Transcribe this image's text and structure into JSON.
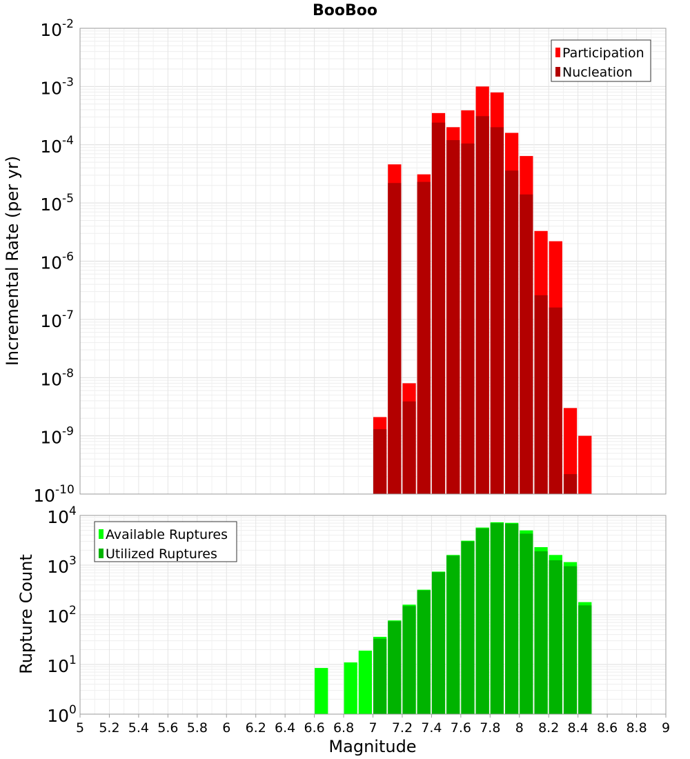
{
  "chart_data": [
    {
      "type": "bar",
      "title": "BooBoo",
      "xlabel": "",
      "ylabel": "Incremental Rate (per yr)",
      "yscale": "log",
      "ylim": [
        1e-10,
        0.01
      ],
      "xlim": [
        5,
        9
      ],
      "bin_width": 0.1,
      "y_tick_base": "10",
      "y_ticks": [
        {
          "exp": -2,
          "label": "-2"
        },
        {
          "exp": -3,
          "label": "-3"
        },
        {
          "exp": -4,
          "label": "-4"
        },
        {
          "exp": -5,
          "label": "-5"
        },
        {
          "exp": -6,
          "label": "-6"
        },
        {
          "exp": -7,
          "label": "-7"
        },
        {
          "exp": -8,
          "label": "-8"
        },
        {
          "exp": -9,
          "label": "-9"
        },
        {
          "exp": -10,
          "label": "-10"
        }
      ],
      "grid": true,
      "legend_position": "top-right",
      "series": [
        {
          "name": "Participation",
          "color": "#ff0000",
          "x": [
            7.0,
            7.1,
            7.2,
            7.3,
            7.4,
            7.5,
            7.6,
            7.7,
            7.8,
            7.9,
            8.0,
            8.1,
            8.2,
            8.3,
            8.4
          ],
          "values": [
            2.1e-09,
            4.6e-05,
            8e-09,
            3.1e-05,
            0.00035,
            0.0002,
            0.00039,
            0.001,
            0.00079,
            0.00016,
            6.4e-05,
            3.3e-06,
            2.2e-06,
            3e-09,
            1e-09
          ]
        },
        {
          "name": "Nucleation",
          "color": "#b30000",
          "x": [
            7.0,
            7.1,
            7.2,
            7.3,
            7.4,
            7.5,
            7.6,
            7.7,
            7.8,
            7.9,
            8.0,
            8.1,
            8.2,
            8.3
          ],
          "values": [
            1.3e-09,
            2.2e-05,
            3.9e-09,
            2.3e-05,
            0.00024,
            0.00012,
            0.000105,
            0.00031,
            0.0002,
            3.6e-05,
            1.4e-05,
            2.6e-07,
            1.6e-07,
            2.2e-10
          ]
        }
      ]
    },
    {
      "type": "bar",
      "title": "",
      "xlabel": "Magnitude",
      "ylabel": "Rupture Count",
      "yscale": "log",
      "ylim": [
        1,
        10000
      ],
      "xlim": [
        5,
        9
      ],
      "bin_width": 0.1,
      "y_tick_base": "10",
      "y_ticks": [
        {
          "exp": 4,
          "label": "4"
        },
        {
          "exp": 3,
          "label": "3"
        },
        {
          "exp": 2,
          "label": "2"
        },
        {
          "exp": 1,
          "label": "1"
        },
        {
          "exp": 0,
          "label": "0"
        }
      ],
      "x_ticks": [
        "5",
        "5.2",
        "5.4",
        "5.6",
        "5.8",
        "6",
        "6.2",
        "6.4",
        "6.6",
        "6.8",
        "7",
        "7.2",
        "7.4",
        "7.6",
        "7.8",
        "8",
        "8.2",
        "8.4",
        "8.6",
        "8.8",
        "9"
      ],
      "grid": true,
      "legend_position": "top-left",
      "series": [
        {
          "name": "Available Ruptures",
          "color": "#00ff00",
          "x": [
            6.6,
            6.8,
            6.9,
            7.0,
            7.1,
            7.2,
            7.3,
            7.4,
            7.5,
            7.6,
            7.7,
            7.8,
            7.9,
            8.0,
            8.1,
            8.2,
            8.3,
            8.4
          ],
          "values": [
            8.5,
            11,
            19,
            36,
            77,
            160,
            320,
            740,
            1600,
            3100,
            5700,
            7300,
            7100,
            5000,
            2300,
            1600,
            1150,
            180
          ]
        },
        {
          "name": "Utilized Ruptures",
          "color": "#00b300",
          "x": [
            7.0,
            7.1,
            7.2,
            7.3,
            7.4,
            7.5,
            7.6,
            7.7,
            7.8,
            7.9,
            8.0,
            8.1,
            8.2,
            8.3,
            8.4
          ],
          "values": [
            33,
            74,
            150,
            310,
            720,
            1550,
            3000,
            5500,
            7000,
            6800,
            4300,
            1900,
            1250,
            950,
            155
          ]
        }
      ]
    }
  ]
}
